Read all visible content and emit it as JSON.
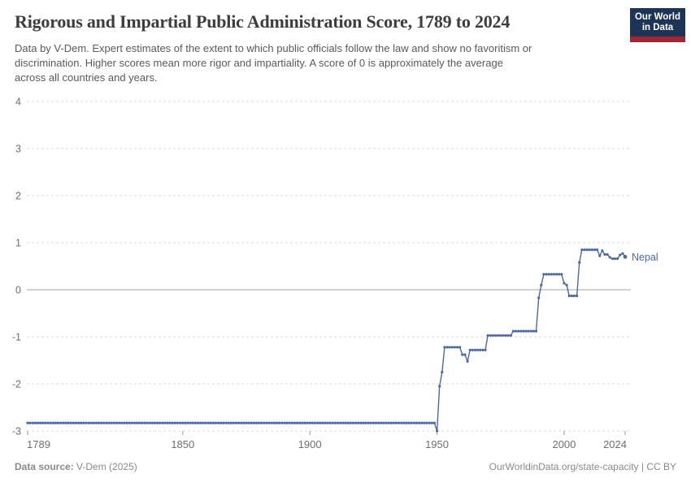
{
  "header": {
    "title": "Rigorous and Impartial Public Administration Score, 1789 to 2024",
    "subtitle_lines": [
      "Data by V-Dem. Expert estimates of the extent to which public officials follow the law and show no favoritism or",
      "discrimination. Higher scores mean more rigor and impartiality. A score of 0 is approximately the average",
      "across all countries and years."
    ],
    "logo": {
      "line1": "Our World",
      "line2": "in Data"
    }
  },
  "chart_data": {
    "type": "line",
    "title": "Rigorous and Impartial Public Administration Score, 1789 to 2024",
    "entity": "Nepal",
    "x_axis": {
      "ticks": [
        1789,
        1850,
        1900,
        1950,
        2000,
        2024
      ],
      "range": [
        1789,
        2024
      ]
    },
    "y_axis": {
      "ticks": [
        4,
        3,
        2,
        1,
        0,
        -1,
        -2,
        -3
      ],
      "range": [
        -3,
        4
      ],
      "gridlines": "dashed",
      "zero_line": "solid"
    },
    "colors": {
      "line": "#4c68a2",
      "grid": "#dadada",
      "zero_line": "#a3a3a3",
      "axis_text": "#6e6e6e"
    },
    "series": [
      {
        "name": "Nepal",
        "color": "#4c68a2",
        "value_runs": [
          [
            1789,
            1949,
            -2.83
          ],
          [
            1950,
            1950,
            -3.0
          ],
          [
            1951,
            1951,
            -2.05
          ],
          [
            1952,
            1952,
            -1.75
          ],
          [
            1953,
            1959,
            -1.22
          ],
          [
            1960,
            1961,
            -1.38
          ],
          [
            1962,
            1962,
            -1.52
          ],
          [
            1963,
            1969,
            -1.28
          ],
          [
            1970,
            1979,
            -0.97
          ],
          [
            1980,
            1989,
            -0.88
          ],
          [
            1990,
            1990,
            -0.17
          ],
          [
            1991,
            1991,
            0.1
          ],
          [
            1992,
            1999,
            0.33
          ],
          [
            2000,
            2000,
            0.14
          ],
          [
            2001,
            2001,
            0.1
          ],
          [
            2002,
            2005,
            -0.13
          ],
          [
            2006,
            2006,
            0.58
          ],
          [
            2007,
            2013,
            0.85
          ],
          [
            2014,
            2014,
            0.72
          ],
          [
            2015,
            2015,
            0.83
          ],
          [
            2016,
            2017,
            0.75
          ],
          [
            2018,
            2018,
            0.69
          ],
          [
            2019,
            2021,
            0.66
          ],
          [
            2022,
            2022,
            0.74
          ],
          [
            2023,
            2023,
            0.77
          ],
          [
            2024,
            2024,
            0.7
          ]
        ]
      }
    ]
  },
  "footer": {
    "source_label": "Data source:",
    "source_value": " V-Dem (2025)",
    "credit": "OurWorldinData.org/state-capacity | CC BY"
  }
}
